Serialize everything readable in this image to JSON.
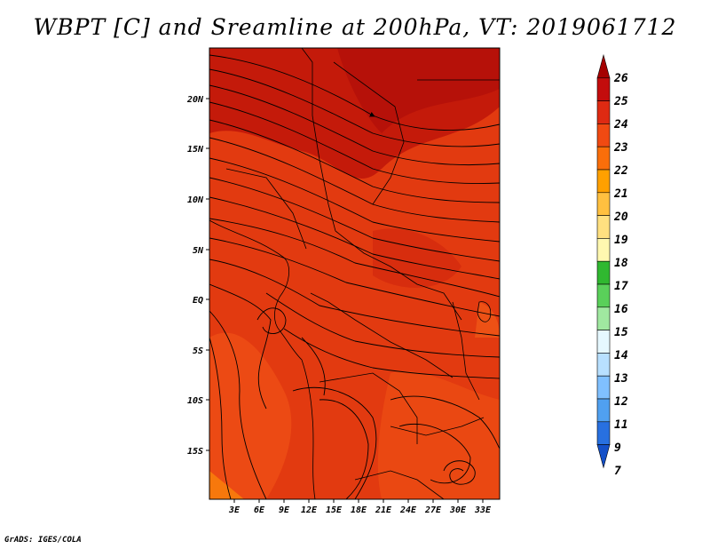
{
  "title": "WBPT [C] and Sreamline at 200hPa, VT: 2019061712",
  "credit": "GrADS: IGES/COLA",
  "map": {
    "x_ticks": [
      "3E",
      "6E",
      "9E",
      "12E",
      "15E",
      "18E",
      "21E",
      "24E",
      "27E",
      "30E",
      "33E"
    ],
    "y_ticks": [
      "20N",
      "15N",
      "10N",
      "5N",
      "EQ",
      "5S",
      "10S",
      "15S"
    ],
    "field_color": "#e23a10",
    "dark_color": "#c41a0a",
    "light_color": "#f25a18"
  },
  "colorbar": {
    "labels": [
      "26",
      "25",
      "24",
      "23",
      "22",
      "21",
      "20",
      "19",
      "18",
      "17",
      "16",
      "15",
      "14",
      "13",
      "12",
      "11",
      "9",
      "7"
    ],
    "colors": [
      "#a50000",
      "#c30c0c",
      "#de2a12",
      "#f04a12",
      "#fa6e0a",
      "#ffa000",
      "#ffc040",
      "#ffe080",
      "#fff8b0",
      "#30b830",
      "#5ad05a",
      "#a0e8a0",
      "#e6f8ff",
      "#b8e0ff",
      "#80c0ff",
      "#50a0f0",
      "#2870e0",
      "#1450c8"
    ]
  }
}
